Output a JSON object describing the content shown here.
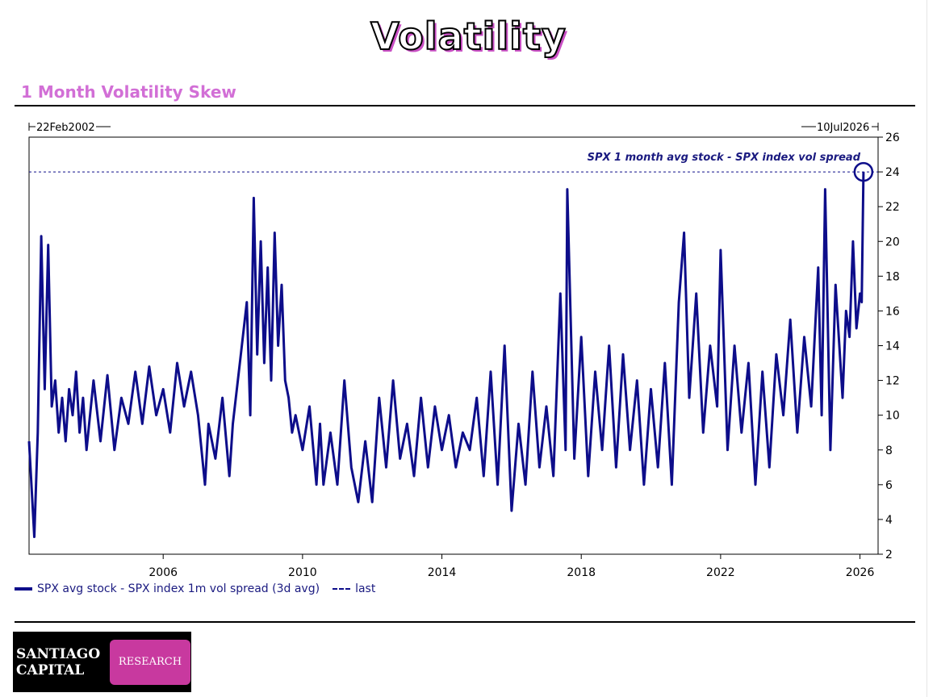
{
  "page": {
    "title": "Volatility",
    "section_title": "1 Month Volatility Skew"
  },
  "chart_data": {
    "type": "line",
    "start_label": "22Feb2002",
    "end_label": "10Jul2026",
    "annotation": "SPX 1 month avg stock - SPX index vol spread",
    "x_ticks": [
      "2006",
      "2010",
      "2014",
      "2018",
      "2022",
      "2026"
    ],
    "y_ticks": [
      2,
      4,
      6,
      8,
      10,
      12,
      14,
      16,
      18,
      20,
      22,
      24,
      26
    ],
    "ylim": [
      2,
      26
    ],
    "xlim": [
      2002.15,
      2026.52
    ],
    "y_axis_position": "right",
    "grid": false,
    "legend": {
      "placement": "bottom-left",
      "series_label": "SPX avg stock - SPX index 1m vol spread (3d avg)",
      "last_label": "last"
    },
    "last_value": 24,
    "highlight": {
      "x": 2026.1,
      "y": 24,
      "shape": "circle"
    },
    "colors": {
      "series": "#0d0d8a",
      "axis": "#000000"
    },
    "series": [
      {
        "name": "SPX avg stock - SPX index 1m vol spread (3d avg)",
        "x": [
          2002.15,
          2002.3,
          2002.4,
          2002.5,
          2002.6,
          2002.7,
          2002.8,
          2002.9,
          2003.0,
          2003.1,
          2003.2,
          2003.3,
          2003.4,
          2003.5,
          2003.6,
          2003.7,
          2003.8,
          2004.0,
          2004.2,
          2004.4,
          2004.6,
          2004.8,
          2005.0,
          2005.2,
          2005.4,
          2005.6,
          2005.8,
          2006.0,
          2006.2,
          2006.4,
          2006.6,
          2006.8,
          2007.0,
          2007.2,
          2007.3,
          2007.5,
          2007.7,
          2007.9,
          2008.0,
          2008.2,
          2008.4,
          2008.5,
          2008.6,
          2008.7,
          2008.8,
          2008.9,
          2009.0,
          2009.1,
          2009.2,
          2009.3,
          2009.4,
          2009.5,
          2009.6,
          2009.7,
          2009.8,
          2010.0,
          2010.2,
          2010.4,
          2010.5,
          2010.6,
          2010.8,
          2011.0,
          2011.2,
          2011.4,
          2011.6,
          2011.8,
          2012.0,
          2012.2,
          2012.4,
          2012.6,
          2012.8,
          2013.0,
          2013.2,
          2013.4,
          2013.6,
          2013.8,
          2014.0,
          2014.2,
          2014.4,
          2014.6,
          2014.8,
          2015.0,
          2015.2,
          2015.4,
          2015.6,
          2015.8,
          2016.0,
          2016.2,
          2016.4,
          2016.6,
          2016.8,
          2017.0,
          2017.2,
          2017.4,
          2017.55,
          2017.6,
          2017.8,
          2018.0,
          2018.2,
          2018.4,
          2018.6,
          2018.8,
          2019.0,
          2019.2,
          2019.4,
          2019.6,
          2019.8,
          2020.0,
          2020.2,
          2020.4,
          2020.6,
          2020.8,
          2020.95,
          2021.1,
          2021.3,
          2021.5,
          2021.7,
          2021.9,
          2022.0,
          2022.2,
          2022.4,
          2022.6,
          2022.8,
          2023.0,
          2023.2,
          2023.4,
          2023.6,
          2023.8,
          2024.0,
          2024.2,
          2024.4,
          2024.6,
          2024.8,
          2024.9,
          2025.0,
          2025.1,
          2025.15,
          2025.3,
          2025.5,
          2025.6,
          2025.7,
          2025.8,
          2025.9,
          2026.0,
          2026.05,
          2026.1
        ],
        "y": [
          8.5,
          3.0,
          9.0,
          20.3,
          11.5,
          19.8,
          10.5,
          12.0,
          9.0,
          11.0,
          8.5,
          11.5,
          10.0,
          12.5,
          9.0,
          11.0,
          8.0,
          12.0,
          8.5,
          12.3,
          8.0,
          11.0,
          9.5,
          12.5,
          9.5,
          12.8,
          10.0,
          11.5,
          9.0,
          13.0,
          10.5,
          12.5,
          10.0,
          6.0,
          9.5,
          7.5,
          11.0,
          6.5,
          9.5,
          13.0,
          16.5,
          10.0,
          22.5,
          13.5,
          20.0,
          13.0,
          18.5,
          12.0,
          20.5,
          14.0,
          17.5,
          12.0,
          11.0,
          9.0,
          10.0,
          8.0,
          10.5,
          6.0,
          9.5,
          6.0,
          9.0,
          6.0,
          12.0,
          7.0,
          5.0,
          8.5,
          5.0,
          11.0,
          7.0,
          12.0,
          7.5,
          9.5,
          6.5,
          11.0,
          7.0,
          10.5,
          8.0,
          10.0,
          7.0,
          9.0,
          8.0,
          11.0,
          6.5,
          12.5,
          6.0,
          14.0,
          4.5,
          9.5,
          6.0,
          12.5,
          7.0,
          10.5,
          6.5,
          17.0,
          8.0,
          23.0,
          7.5,
          14.5,
          6.5,
          12.5,
          8.0,
          14.0,
          7.0,
          13.5,
          8.0,
          12.0,
          6.0,
          11.5,
          7.0,
          13.0,
          6.0,
          16.5,
          20.5,
          11.0,
          17.0,
          9.0,
          14.0,
          10.5,
          19.5,
          8.0,
          14.0,
          9.0,
          13.0,
          6.0,
          12.5,
          7.0,
          13.5,
          10.0,
          15.5,
          9.0,
          14.5,
          10.5,
          18.5,
          10.0,
          23.0,
          13.0,
          8.0,
          17.5,
          11.0,
          16.0,
          14.5,
          20.0,
          15.0,
          17.0,
          16.5,
          24.0
        ]
      }
    ]
  }
}
